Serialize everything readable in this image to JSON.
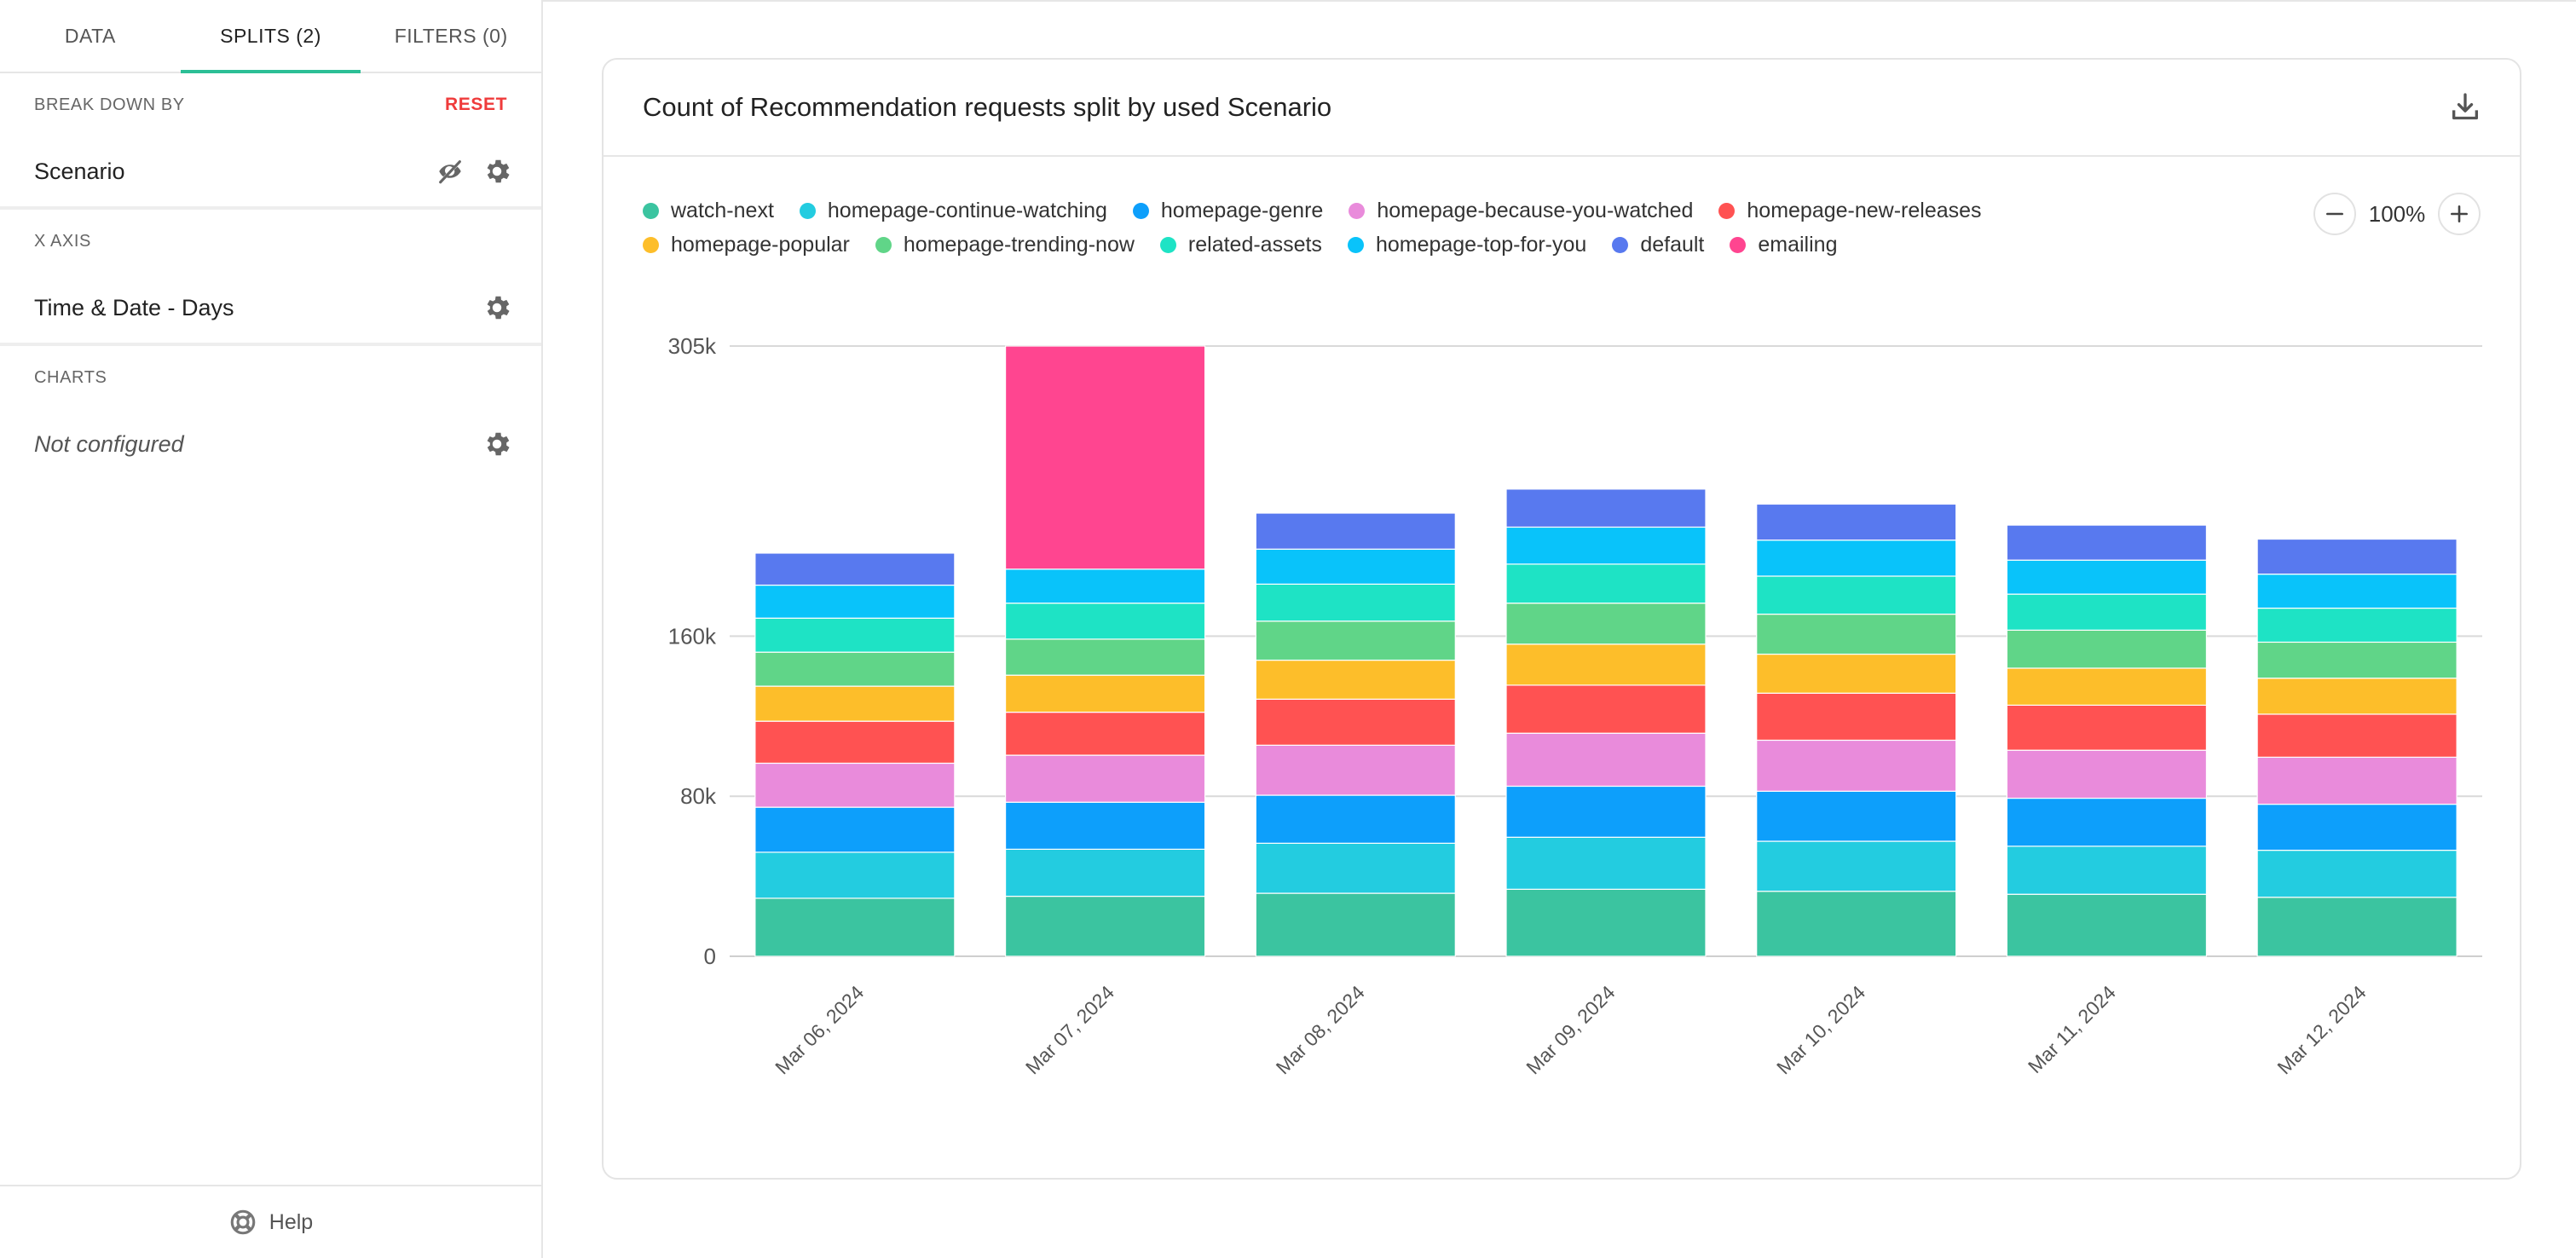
{
  "sidebar": {
    "tabs": [
      {
        "label": "DATA"
      },
      {
        "label": "SPLITS (2)"
      },
      {
        "label": "FILTERS (0)"
      }
    ],
    "breakdown": {
      "heading": "BREAK DOWN BY",
      "reset_label": "RESET",
      "value": "Scenario"
    },
    "xaxis": {
      "heading": "X AXIS",
      "value": "Time & Date - Days"
    },
    "charts": {
      "heading": "CHARTS",
      "value": "Not configured"
    },
    "help_label": "Help"
  },
  "card": {
    "title": "Count of Recommendation requests split by used Scenario",
    "zoom_value": "100%"
  },
  "colors": {
    "accent": "#2cbf96",
    "reset": "#ef3b3b"
  },
  "chart_data": {
    "type": "bar",
    "stacked": true,
    "categories": [
      "Mar 06, 2024",
      "Mar 07, 2024",
      "Mar 08, 2024",
      "Mar 09, 2024",
      "Mar 10, 2024",
      "Mar 11, 2024",
      "Mar 12, 2024"
    ],
    "y_ticks": [
      {
        "value": 0,
        "label": "0"
      },
      {
        "value": 80000,
        "label": "80k"
      },
      {
        "value": 160000,
        "label": "160k"
      },
      {
        "value": 305000,
        "label": "305k"
      }
    ],
    "ylim": [
      0,
      305000
    ],
    "grid": true,
    "legend_position": "top-left",
    "series": [
      {
        "name": "watch-next",
        "color": "#3bc4a0",
        "values": [
          29000,
          30000,
          31500,
          33500,
          32500,
          31000,
          29500
        ]
      },
      {
        "name": "homepage-continue-watching",
        "color": "#23cce0",
        "values": [
          23000,
          23500,
          25000,
          26000,
          25000,
          24000,
          23500
        ]
      },
      {
        "name": "homepage-genre",
        "color": "#0d9ffb",
        "values": [
          22500,
          23500,
          24000,
          25500,
          25000,
          24000,
          23000
        ]
      },
      {
        "name": "homepage-because-you-watched",
        "color": "#e98bdb",
        "values": [
          22000,
          23500,
          25000,
          26500,
          25500,
          24000,
          23500
        ]
      },
      {
        "name": "homepage-new-releases",
        "color": "#ff5252",
        "values": [
          21000,
          21500,
          23000,
          24000,
          23500,
          22500,
          21500
        ]
      },
      {
        "name": "homepage-popular",
        "color": "#fdbe2a",
        "values": [
          17500,
          18500,
          19500,
          20500,
          19500,
          18500,
          18000
        ]
      },
      {
        "name": "homepage-trending-now",
        "color": "#60d588",
        "values": [
          17000,
          18000,
          19500,
          20500,
          20000,
          19000,
          18000
        ]
      },
      {
        "name": "related-assets",
        "color": "#1ee3c5",
        "values": [
          17000,
          18000,
          18500,
          19500,
          19000,
          18000,
          17000
        ]
      },
      {
        "name": "homepage-top-for-you",
        "color": "#09c3fa",
        "values": [
          16500,
          17000,
          17500,
          18500,
          18000,
          17000,
          17000
        ]
      },
      {
        "name": "default",
        "color": "#5879ef",
        "values": [
          16000,
          0,
          18000,
          19000,
          18000,
          17500,
          17500
        ]
      },
      {
        "name": "emailing",
        "color": "#ff4590",
        "values": [
          0,
          111500,
          0,
          0,
          0,
          0,
          0
        ]
      }
    ]
  }
}
